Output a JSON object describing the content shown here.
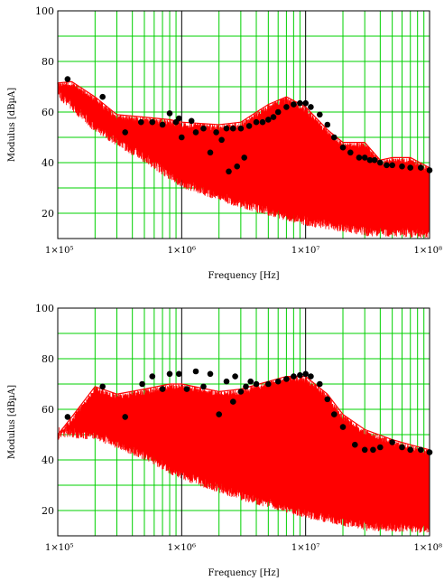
{
  "colors": {
    "background": "#ffffff",
    "grid": "#00d000",
    "major_grid": "#000000",
    "trace": "#ff0000",
    "markers": "#000000"
  },
  "chart_data": [
    {
      "type": "line",
      "xlabel": "Frequency [Hz]",
      "ylabel": "Modulus [dBµA]",
      "xscale": "log",
      "xlim": [
        100000,
        100000000
      ],
      "ylim": [
        10,
        100
      ],
      "xticks": [
        100000,
        1000000,
        10000000,
        100000000
      ],
      "xtick_labels": [
        "1×10⁵",
        "1×10⁶",
        "1×10⁷",
        "1×10⁸"
      ],
      "yticks": [
        20,
        40,
        60,
        80,
        100
      ],
      "ytick_labels": [
        "20",
        "40",
        "60",
        "80",
        "100"
      ],
      "grid": true,
      "series": [
        {
          "style": "red spectrum (lines)",
          "envelope": {
            "x": [
              80000,
              100000,
              130000,
              200000,
              300000,
              500000,
              800000,
              1000000,
              2000000,
              3000000,
              5000000,
              7000000,
              10000000,
              15000000,
              20000000,
              30000000,
              40000000,
              50000000,
              70000000,
              100000000
            ],
            "y": [
              71,
              71.5,
              72,
              66,
              59,
              58,
              57,
              56,
              55,
              56,
              63,
              66,
              62,
              53,
              48,
              48,
              41,
              42,
              42,
              38
            ]
          },
          "floor": {
            "x": [
              80000,
              200000,
              500000,
              1000000,
              3000000,
              10000000,
              30000000,
              100000000
            ],
            "y": [
              70,
              52,
              40,
              30,
              22,
              15,
              11,
              10
            ]
          }
        },
        {
          "style": "black markers",
          "x": [
            120000,
            230000,
            350000,
            470000,
            580000,
            700000,
            800000,
            900000,
            950000,
            1000000,
            1200000,
            1300000,
            1500000,
            1700000,
            1900000,
            2100000,
            2300000,
            2400000,
            2600000,
            2800000,
            3000000,
            3200000,
            3500000,
            4000000,
            4500000,
            5000000,
            5500000,
            6000000,
            7000000,
            8000000,
            9000000,
            10000000,
            11000000,
            13000000,
            15000000,
            17000000,
            20000000,
            23000000,
            27000000,
            30000000,
            33000000,
            36000000,
            40000000,
            45000000,
            50000000,
            60000000,
            70000000,
            85000000,
            100000000
          ],
          "y": [
            73,
            66,
            52,
            56,
            56,
            55,
            59.5,
            56,
            57.5,
            50,
            56.5,
            52,
            53.5,
            44,
            52,
            49,
            53.5,
            36.5,
            53.5,
            38.5,
            53.5,
            42,
            54.5,
            56,
            56,
            57,
            58,
            60,
            62,
            63,
            63.5,
            63.5,
            62,
            59,
            55,
            50,
            46,
            44,
            42,
            42,
            41,
            41,
            40,
            39,
            39,
            38.5,
            38,
            38,
            37
          ]
        }
      ]
    },
    {
      "type": "line",
      "xlabel": "Frequency [Hz]",
      "ylabel": "Modulus [dBµA]",
      "xscale": "log",
      "xlim": [
        100000,
        100000000
      ],
      "ylim": [
        10,
        100
      ],
      "xticks": [
        100000,
        1000000,
        10000000,
        100000000
      ],
      "xtick_labels": [
        "1×10⁵",
        "1×10⁶",
        "1×10⁷",
        "1×10⁸"
      ],
      "yticks": [
        20,
        40,
        60,
        80,
        100
      ],
      "ytick_labels": [
        "20",
        "40",
        "60",
        "80",
        "100"
      ],
      "grid": true,
      "series": [
        {
          "style": "red spectrum (lines)",
          "envelope": {
            "x": [
              100000,
              130000,
              200000,
              300000,
              500000,
              800000,
              1000000,
              2000000,
              3000000,
              5000000,
              7000000,
              10000000,
              15000000,
              20000000,
              30000000,
              50000000,
              70000000,
              100000000
            ],
            "y": [
              50,
              57,
              69,
              66,
              68,
              70,
              70,
              67,
              68,
              71,
              73,
              73,
              66,
              58,
              52,
              48,
              46,
              44
            ]
          },
          "floor": {
            "x": [
              100000,
              200000,
              500000,
              1000000,
              3000000,
              10000000,
              30000000,
              100000000
            ],
            "y": [
              49,
              48,
              40,
              32,
              24,
              17,
              12,
              11
            ]
          }
        },
        {
          "style": "black markers",
          "x": [
            120000,
            230000,
            350000,
            480000,
            580000,
            700000,
            800000,
            950000,
            1100000,
            1300000,
            1500000,
            1700000,
            2000000,
            2300000,
            2600000,
            2700000,
            3000000,
            3300000,
            3600000,
            4000000,
            5000000,
            6000000,
            7000000,
            8000000,
            9000000,
            10000000,
            11000000,
            13000000,
            15000000,
            17000000,
            20000000,
            25000000,
            30000000,
            35000000,
            40000000,
            50000000,
            60000000,
            70000000,
            85000000,
            100000000
          ],
          "y": [
            57,
            69,
            57,
            70,
            73,
            68,
            74,
            74,
            68,
            75,
            69,
            74,
            58,
            71,
            63,
            73,
            67,
            69,
            71,
            70,
            70,
            71,
            72,
            73,
            73.5,
            74,
            73,
            70,
            64,
            58,
            53,
            46,
            44,
            44,
            45,
            47,
            45,
            44,
            44,
            43
          ]
        }
      ]
    }
  ]
}
